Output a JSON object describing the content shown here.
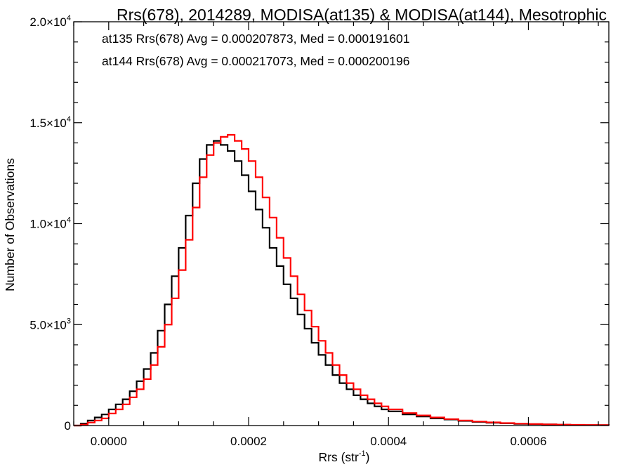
{
  "chart_data": {
    "type": "line",
    "title": "Rrs(678), 2014289, MODISA(at135) & MODISA(at144), Mesotrophic",
    "xlabel_main": "Rrs (str",
    "xlabel_sup": "-1",
    "xlabel_end": ")",
    "ylabel": "Number of Observations",
    "xlim": [
      -5e-05,
      0.000715
    ],
    "ylim": [
      0,
      20000
    ],
    "x_ticks": [
      {
        "value": 0.0,
        "label": "0.0000"
      },
      {
        "value": 0.0002,
        "label": "0.0002"
      },
      {
        "value": 0.0004,
        "label": "0.0004"
      },
      {
        "value": 0.0006,
        "label": "0.0006"
      }
    ],
    "y_ticks": [
      {
        "value": 0,
        "label": "0",
        "exp": ""
      },
      {
        "value": 5000,
        "label": "5.0×10",
        "exp": "3"
      },
      {
        "value": 10000,
        "label": "1.0×10",
        "exp": "4"
      },
      {
        "value": 15000,
        "label": "1.5×10",
        "exp": "4"
      },
      {
        "value": 20000,
        "label": "2.0×10",
        "exp": "4"
      }
    ],
    "annotations": [
      {
        "text": "at135 Rrs(678) Avg = 0.000207873, Med = 0.000191601",
        "color": "#000000"
      },
      {
        "text": "at144 Rrs(678) Avg = 0.000217073, Med = 0.000200196",
        "color": "#ff0000"
      }
    ],
    "grid": false,
    "series": [
      {
        "color": "#000000",
        "x": [
          -5e-05,
          -4e-05,
          -3e-05,
          -2e-05,
          -1e-05,
          0.0,
          1e-05,
          2e-05,
          3e-05,
          4e-05,
          5e-05,
          6e-05,
          7e-05,
          8e-05,
          9e-05,
          0.0001,
          0.00011,
          0.00012,
          0.00013,
          0.00014,
          0.00015,
          0.00016,
          0.00017,
          0.00018,
          0.00019,
          0.0002,
          0.00021,
          0.00022,
          0.00023,
          0.00024,
          0.00025,
          0.00026,
          0.00027,
          0.00028,
          0.00029,
          0.0003,
          0.00031,
          0.00032,
          0.00033,
          0.00034,
          0.00035,
          0.00036,
          0.00037,
          0.00038,
          0.00039,
          0.0004,
          0.00042,
          0.00044,
          0.00046,
          0.00048,
          0.0005,
          0.00052,
          0.00054,
          0.00056,
          0.00058,
          0.0006,
          0.00062,
          0.00064,
          0.00066,
          0.00068,
          0.0007,
          0.000715
        ],
        "values": [
          0,
          100,
          250,
          400,
          550,
          800,
          1050,
          1300,
          1700,
          2200,
          2800,
          3600,
          4700,
          6000,
          7400,
          8800,
          10400,
          12000,
          13200,
          13900,
          14100,
          13900,
          13600,
          13100,
          12400,
          11600,
          10700,
          9800,
          8800,
          7900,
          7000,
          6300,
          5500,
          4800,
          4100,
          3500,
          3000,
          2500,
          2100,
          1800,
          1500,
          1300,
          1100,
          950,
          800,
          700,
          550,
          450,
          350,
          300,
          230,
          180,
          140,
          110,
          85,
          70,
          55,
          40,
          30,
          25,
          20,
          15
        ]
      },
      {
        "color": "#ff0000",
        "x": [
          -5e-05,
          -4e-05,
          -3e-05,
          -2e-05,
          -1e-05,
          0.0,
          1e-05,
          2e-05,
          3e-05,
          4e-05,
          5e-05,
          6e-05,
          7e-05,
          8e-05,
          9e-05,
          0.0001,
          0.00011,
          0.00012,
          0.00013,
          0.00014,
          0.00015,
          0.00016,
          0.00017,
          0.00018,
          0.00019,
          0.0002,
          0.00021,
          0.00022,
          0.00023,
          0.00024,
          0.00025,
          0.00026,
          0.00027,
          0.00028,
          0.00029,
          0.0003,
          0.00031,
          0.00032,
          0.00033,
          0.00034,
          0.00035,
          0.00036,
          0.00037,
          0.00038,
          0.00039,
          0.0004,
          0.00042,
          0.00044,
          0.00046,
          0.00048,
          0.0005,
          0.00052,
          0.00054,
          0.00056,
          0.00058,
          0.0006,
          0.00062,
          0.00064,
          0.00066,
          0.00068,
          0.0007,
          0.000715
        ],
        "values": [
          0,
          50,
          150,
          250,
          350,
          600,
          800,
          1050,
          1400,
          1800,
          2300,
          3000,
          3900,
          5000,
          6300,
          7700,
          9200,
          10800,
          12300,
          13400,
          14000,
          14300,
          14400,
          14100,
          13700,
          13100,
          12300,
          11300,
          10300,
          9300,
          8300,
          7400,
          6500,
          5700,
          4900,
          4200,
          3600,
          3000,
          2500,
          2100,
          1800,
          1500,
          1300,
          1100,
          950,
          800,
          620,
          500,
          400,
          320,
          250,
          200,
          155,
          120,
          95,
          75,
          58,
          45,
          35,
          27,
          20,
          15
        ]
      }
    ]
  }
}
